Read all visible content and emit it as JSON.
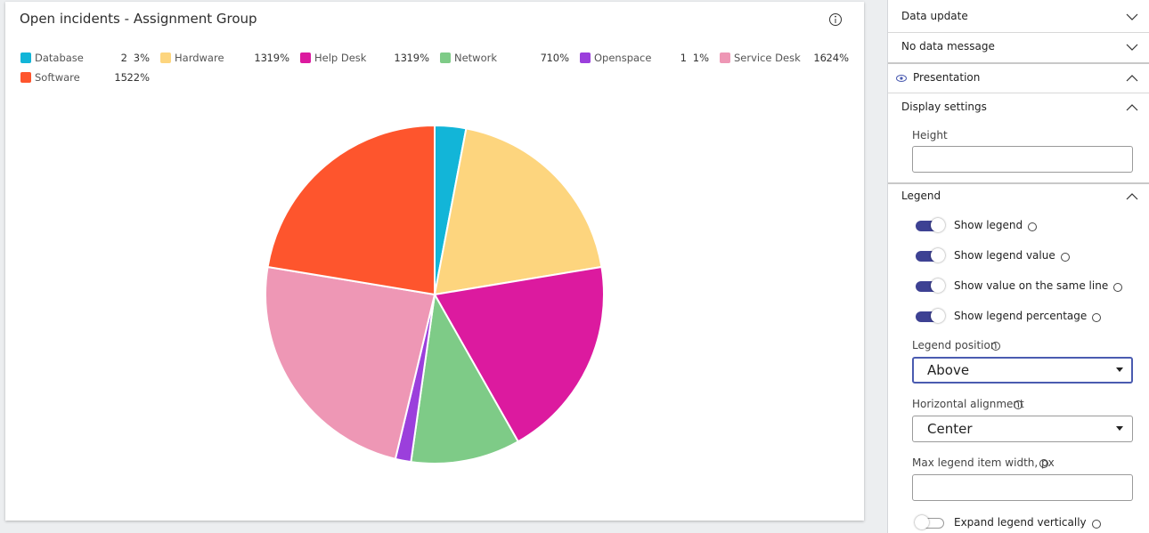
{
  "chart_data": {
    "type": "pie",
    "title": "Open incidents - Assignment Group",
    "categories": [
      "Database",
      "Hardware",
      "Help Desk",
      "Network",
      "Openspace",
      "Service Desk",
      "Software"
    ],
    "values": [
      2,
      13,
      13,
      7,
      1,
      16,
      15
    ],
    "percent_labels": [
      "3%",
      "19%",
      "19%",
      "10%",
      "1%",
      "24%",
      "22%"
    ],
    "colors": [
      "#12b5d8",
      "#fdd57e",
      "#dc1a9f",
      "#7ecb87",
      "#9b3fdc",
      "#ee97b5",
      "#fe552d"
    ],
    "legend": "top"
  },
  "panel": {
    "data_update": "Data update",
    "no_data_message": "No data message",
    "presentation": "Presentation",
    "display_settings": "Display settings",
    "height_label": "Height",
    "legend_section": "Legend",
    "toggles": [
      {
        "label": "Show legend",
        "on": true
      },
      {
        "label": "Show legend value",
        "on": true
      },
      {
        "label": "Show value on the same line",
        "on": true
      },
      {
        "label": "Show legend percentage",
        "on": true
      },
      {
        "label": "Expand legend vertically",
        "on": false
      }
    ],
    "legend_position": {
      "label": "Legend position",
      "value": "Above"
    },
    "horizontal_alignment": {
      "label": "Horizontal alignment",
      "value": "Center"
    },
    "max_width_label": "Max legend item width, px"
  }
}
